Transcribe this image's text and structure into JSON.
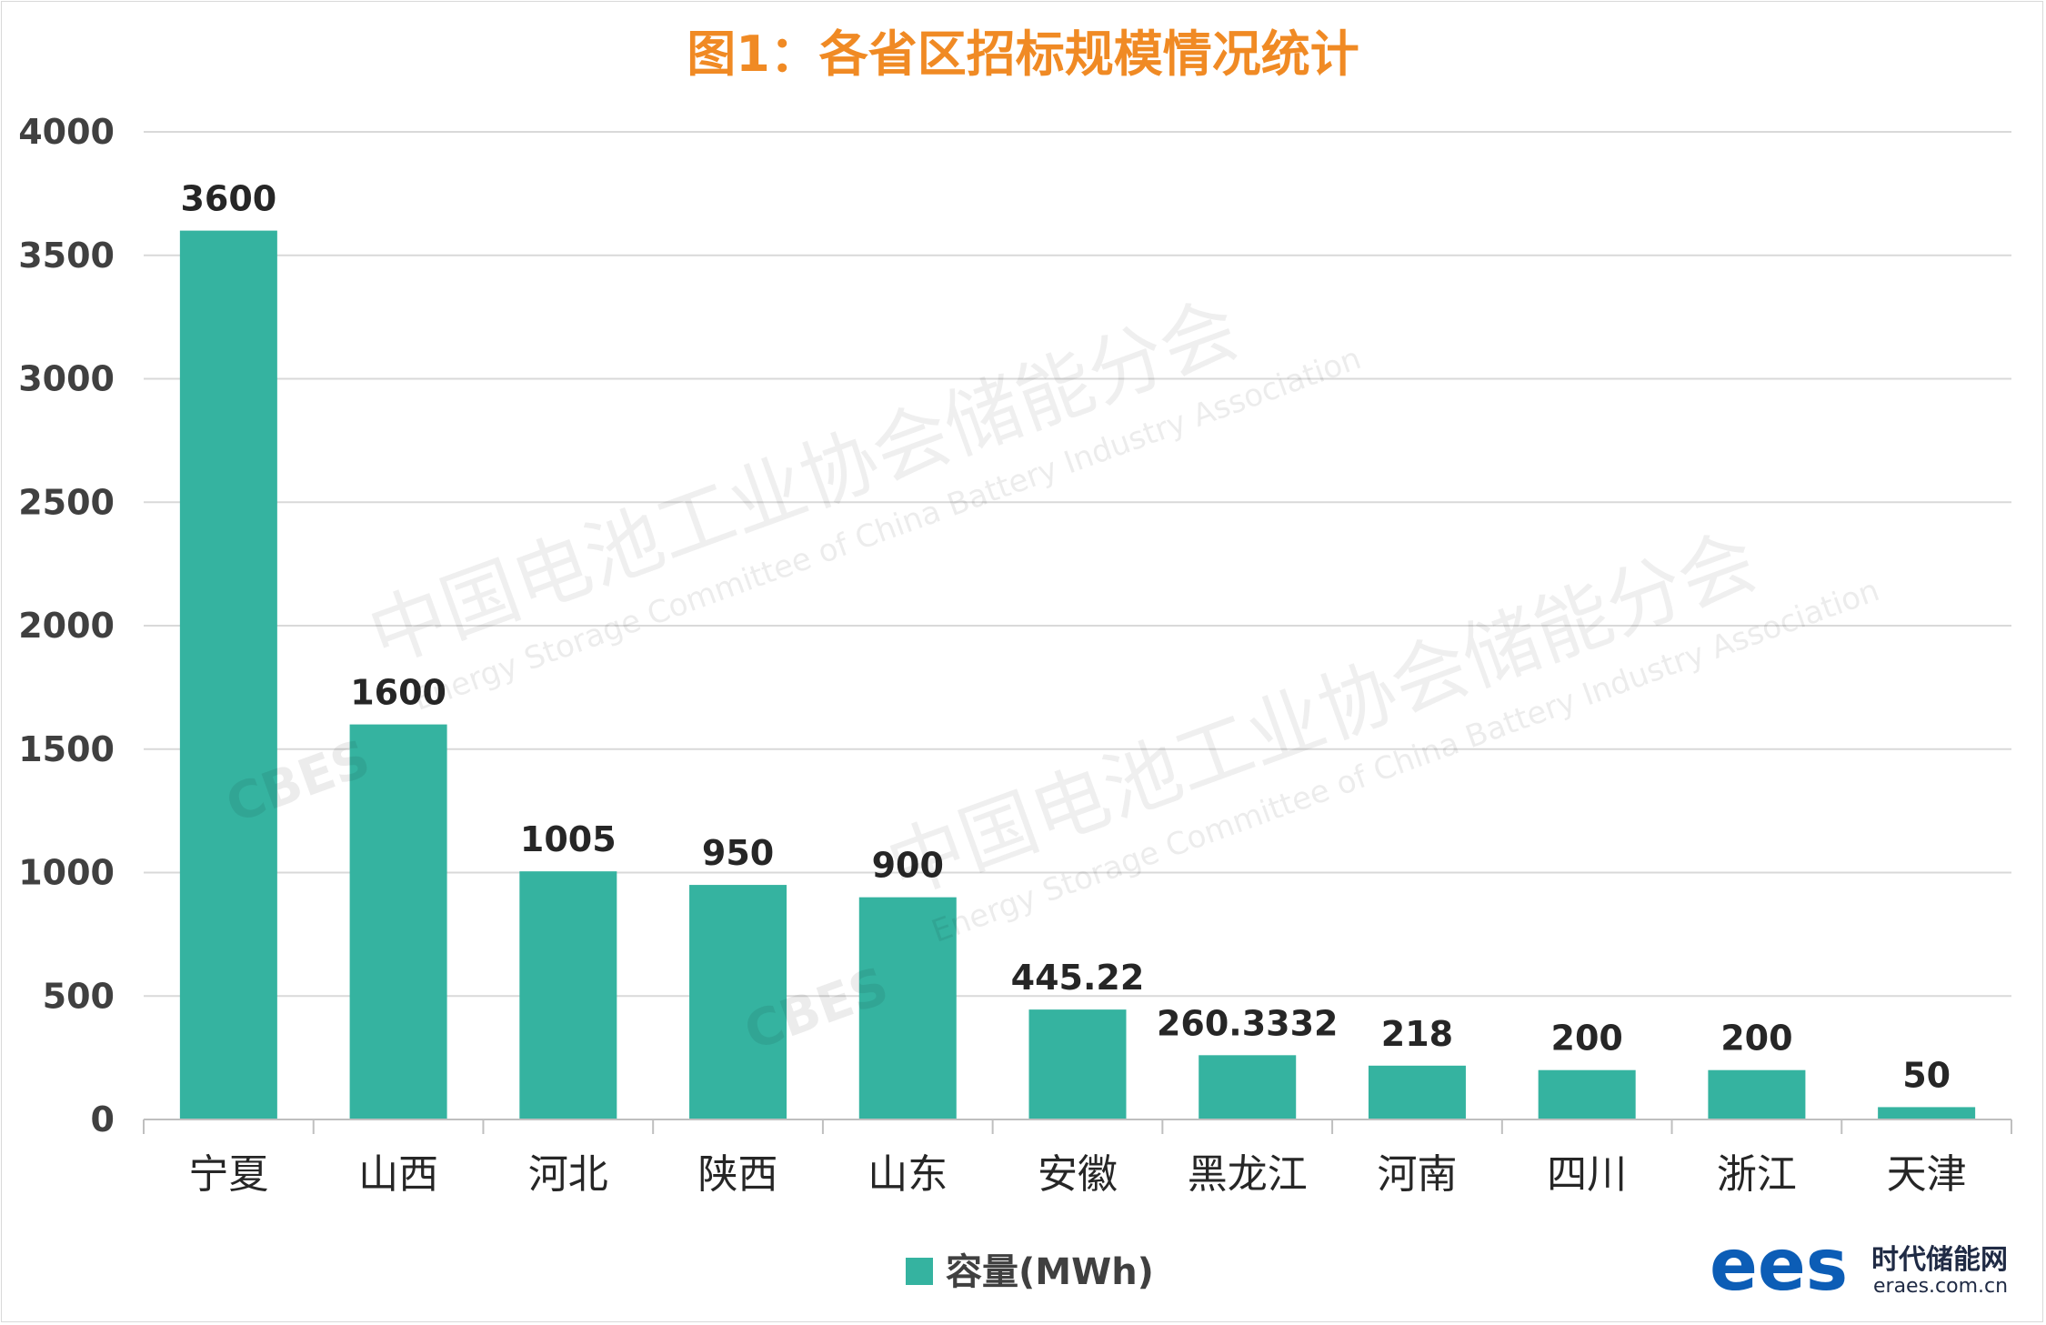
{
  "chart_data": {
    "type": "bar",
    "title": "图1：各省区招标规模情况统计",
    "categories": [
      "宁夏",
      "山西",
      "河北",
      "陕西",
      "山东",
      "安徽",
      "黑龙江",
      "河南",
      "四川",
      "浙江",
      "天津"
    ],
    "series": [
      {
        "name": "容量(MWh)",
        "values": [
          3600,
          1600,
          1005,
          950,
          900,
          445.22,
          260.3332,
          218,
          200,
          200,
          50
        ],
        "labels": [
          "3600",
          "1600",
          "1005",
          "950",
          "900",
          "445.22",
          "260.3332",
          "218",
          "200",
          "200",
          "50"
        ]
      }
    ],
    "ylim": [
      0,
      4000
    ],
    "yticks": [
      "0",
      "500",
      "1000",
      "1500",
      "2000",
      "2500",
      "3000",
      "3500",
      "4000"
    ],
    "grid": true,
    "legend_position": "bottom",
    "bar_color": "#35b3a0"
  },
  "watermark": {
    "cn": "中国电池工业协会储能分会",
    "en": "Energy Storage Committee of China Battery Industry Association",
    "logo": "CBES"
  },
  "brand": {
    "mark": "ees",
    "name": "时代储能网",
    "url": "eraes.com.cn",
    "color": "#0c5db6"
  }
}
